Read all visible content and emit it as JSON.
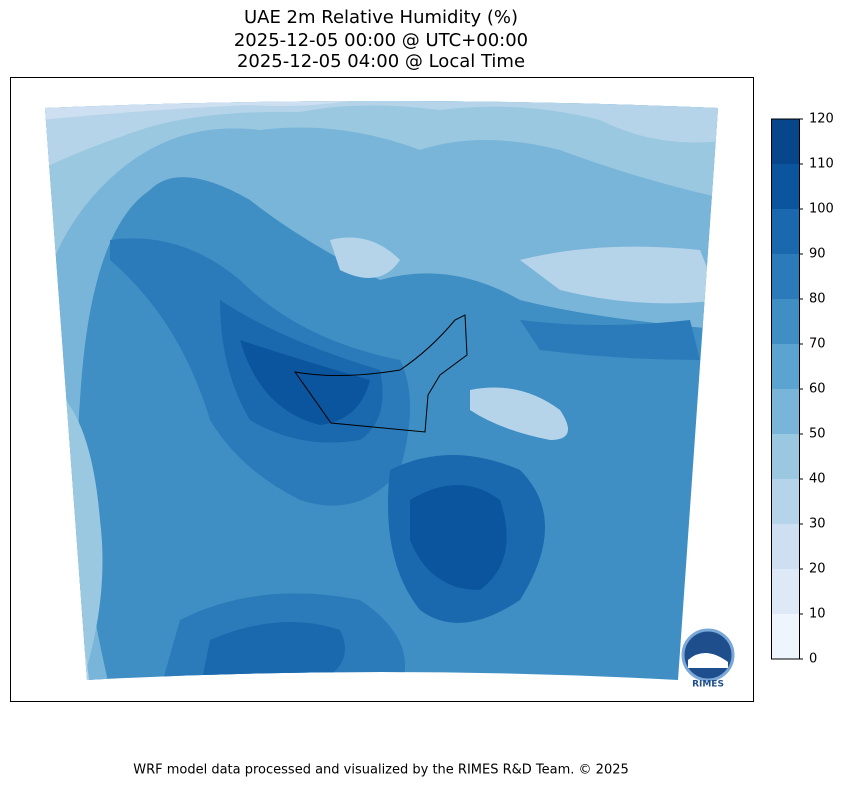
{
  "title": [
    "UAE 2m Relative Humidity (%)",
    "2025-12-05 00:00 @ UTC+00:00",
    "2025-12-05 04:00 @ Local Time"
  ],
  "colorbar": {
    "ticks": [
      0,
      10,
      20,
      30,
      40,
      50,
      60,
      70,
      80,
      90,
      100,
      110,
      120
    ],
    "colors": [
      "#eef5fc",
      "#dde9f6",
      "#cddff1",
      "#b6d4e9",
      "#9ac8e0",
      "#79b5d9",
      "#5ba3d0",
      "#3f8fc5",
      "#2b7bba",
      "#1a68ae",
      "#0b559f",
      "#08468b"
    ]
  },
  "logo": "RIMES",
  "footer": "WRF model data processed and visualized by the RIMES R&D Team. © 2025"
}
